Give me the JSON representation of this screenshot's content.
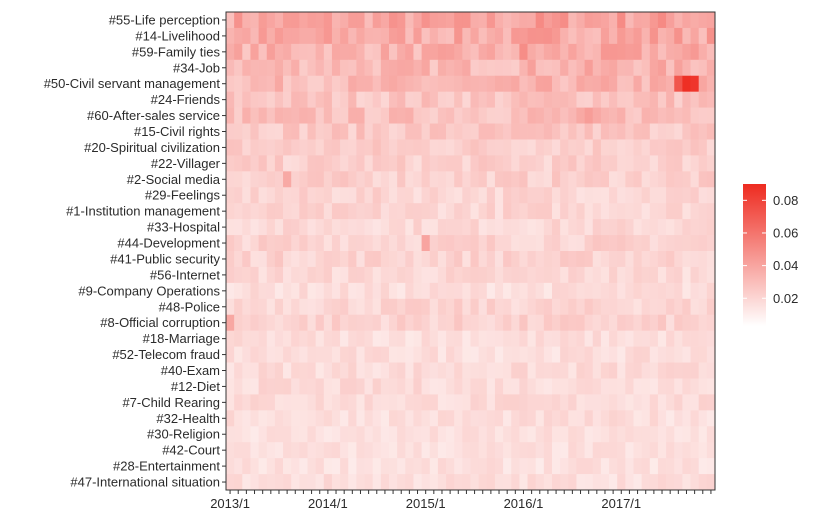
{
  "chart_data": {
    "type": "heatmap",
    "title": "",
    "xlabel": "",
    "ylabel": "",
    "rows": [
      "#55-Life perception",
      "#14-Livelihood",
      "#59-Family ties",
      "#34-Job",
      "#50-Civil servant management",
      "#24-Friends",
      "#60-After-sales service",
      "#15-Civil rights",
      "#20-Spiritual civilization",
      "#22-Villager",
      "#2-Social media",
      "#29-Feelings",
      "#1-Institution management",
      "#33-Hospital",
      "#44-Development",
      "#41-Public security",
      "#56-Internet",
      "#9-Company Operations",
      "#48-Police",
      "#8-Official corruption",
      "#18-Marriage",
      "#52-Telecom fraud",
      "#40-Exam",
      "#12-Diet",
      "#7-Child Rearing",
      "#32-Health",
      "#30-Religion",
      "#42-Court",
      "#28-Entertainment",
      "#47-International situation"
    ],
    "x_start": "2013/1",
    "x_months": 60,
    "x_tick_labels": [
      "2013/1",
      "2014/1",
      "2015/1",
      "2016/1",
      "2017/1"
    ],
    "x_tick_label_months": [
      0,
      12,
      24,
      36,
      48
    ],
    "row_base_values": [
      0.034,
      0.032,
      0.029,
      0.027,
      0.026,
      0.022,
      0.024,
      0.021,
      0.019,
      0.018,
      0.018,
      0.016,
      0.016,
      0.015,
      0.017,
      0.017,
      0.015,
      0.013,
      0.016,
      0.017,
      0.013,
      0.013,
      0.014,
      0.014,
      0.014,
      0.013,
      0.012,
      0.012,
      0.012,
      0.013
    ],
    "notable_cells": [
      {
        "row": "#50-Civil servant management",
        "month": "2017/9",
        "value": 0.088
      },
      {
        "row": "#50-Civil servant management",
        "month": "2017/10",
        "value": 0.085
      },
      {
        "row": "#50-Civil servant management",
        "month": "2017/8",
        "value": 0.07
      },
      {
        "row": "#59-Family ties",
        "month": "2016/1",
        "value": 0.045
      },
      {
        "row": "#59-Family ties",
        "month": "2017/1",
        "value": 0.04
      },
      {
        "row": "#60-After-sales service",
        "month": "2016/9",
        "value": 0.038
      },
      {
        "row": "#44-Development",
        "month": "2015/1",
        "value": 0.035
      },
      {
        "row": "#2-Social media",
        "month": "2013/8",
        "value": 0.033
      },
      {
        "row": "#8-Official corruption",
        "month": "2013/1",
        "value": 0.034
      }
    ],
    "legend": {
      "position": "right",
      "range": [
        0.003,
        0.09
      ],
      "ticks": [
        0.02,
        0.04,
        0.06,
        0.08
      ],
      "tick_labels": [
        "0.02",
        "0.04",
        "0.06",
        "0.08"
      ],
      "color_low": "#ffffff",
      "color_high": "#ee2b20"
    },
    "grid": false
  }
}
